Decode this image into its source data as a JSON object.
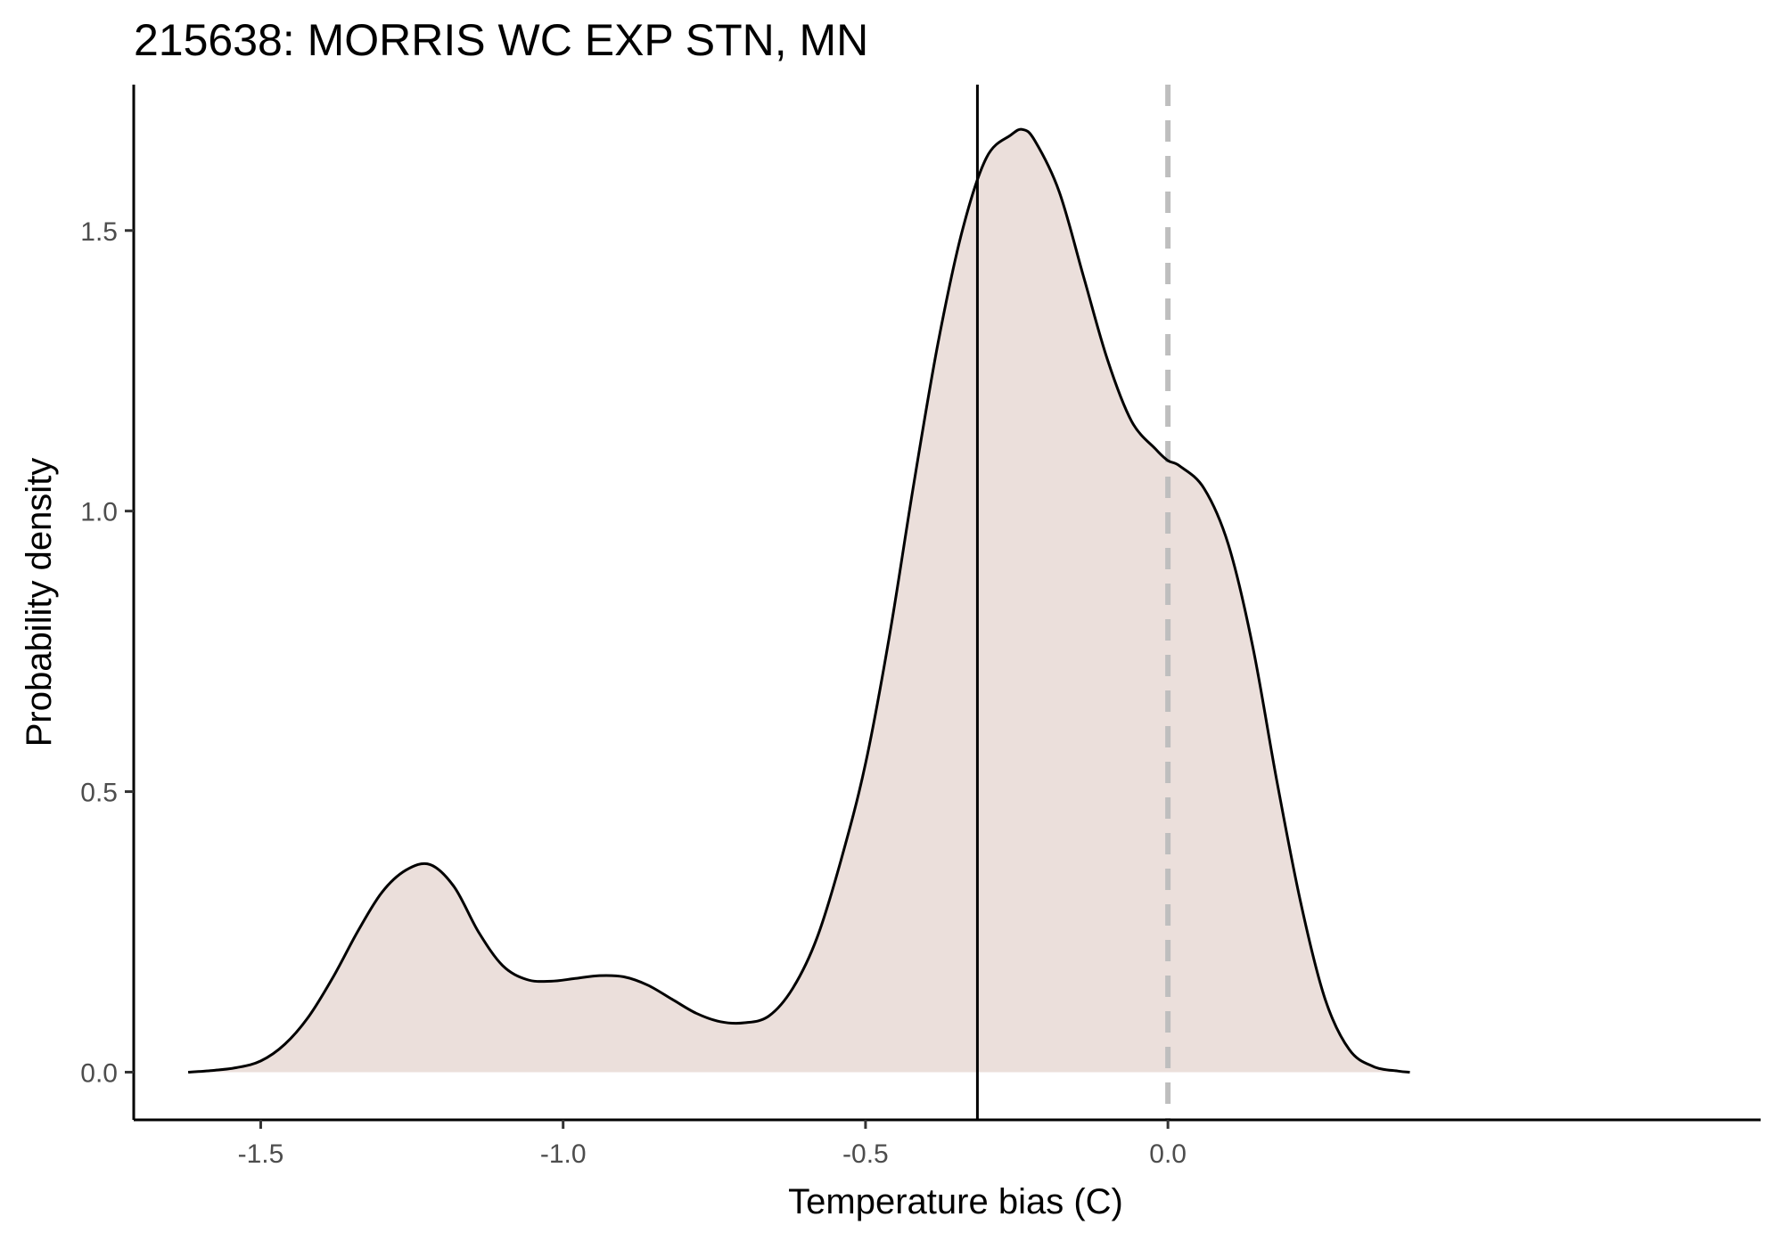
{
  "chart_data": {
    "type": "area",
    "title": "215638: MORRIS WC EXP STN, MN",
    "xlabel": "Temperature bias (C)",
    "ylabel": "Probability density",
    "xlim": [
      -1.71,
      0.98
    ],
    "ylim": [
      -0.085,
      1.76
    ],
    "xticks": [
      -1.5,
      -1.0,
      -0.5,
      0.0
    ],
    "xtick_labels": [
      "-1.5",
      "-1.0",
      "-0.5",
      "0.0"
    ],
    "yticks": [
      0.0,
      0.5,
      1.0,
      1.5
    ],
    "ytick_labels": [
      "0.0",
      "0.5",
      "1.0",
      "1.5"
    ],
    "grid": false,
    "fill_color": "#ebdfdb",
    "line_color": "#000000",
    "reference_lines": [
      {
        "x": -0.315,
        "style": "solid",
        "color": "#000000"
      },
      {
        "x": 0.0,
        "style": "dashed",
        "color": "#bebebe"
      }
    ],
    "series": [
      {
        "x": [
          -1.62,
          -1.58,
          -1.54,
          -1.5,
          -1.46,
          -1.42,
          -1.38,
          -1.34,
          -1.3,
          -1.26,
          -1.22,
          -1.18,
          -1.14,
          -1.1,
          -1.06,
          -1.02,
          -0.98,
          -0.94,
          -0.9,
          -0.86,
          -0.82,
          -0.78,
          -0.74,
          -0.7,
          -0.66,
          -0.62,
          -0.58,
          -0.54,
          -0.5,
          -0.46,
          -0.42,
          -0.38,
          -0.34,
          -0.3,
          -0.26,
          -0.24,
          -0.22,
          -0.18,
          -0.14,
          -0.1,
          -0.06,
          -0.02,
          0.0,
          0.02,
          0.06,
          0.1,
          0.14,
          0.18,
          0.22,
          0.26,
          0.3,
          0.34,
          0.38,
          0.4
        ],
        "y": [
          0.0,
          0.003,
          0.008,
          0.02,
          0.05,
          0.1,
          0.17,
          0.25,
          0.32,
          0.36,
          0.37,
          0.33,
          0.25,
          0.19,
          0.165,
          0.162,
          0.167,
          0.172,
          0.17,
          0.155,
          0.13,
          0.105,
          0.09,
          0.088,
          0.1,
          0.15,
          0.24,
          0.38,
          0.55,
          0.78,
          1.05,
          1.3,
          1.5,
          1.63,
          1.67,
          1.68,
          1.66,
          1.57,
          1.42,
          1.27,
          1.16,
          1.11,
          1.09,
          1.08,
          1.04,
          0.94,
          0.76,
          0.52,
          0.3,
          0.13,
          0.04,
          0.01,
          0.002,
          0.0
        ]
      }
    ]
  }
}
